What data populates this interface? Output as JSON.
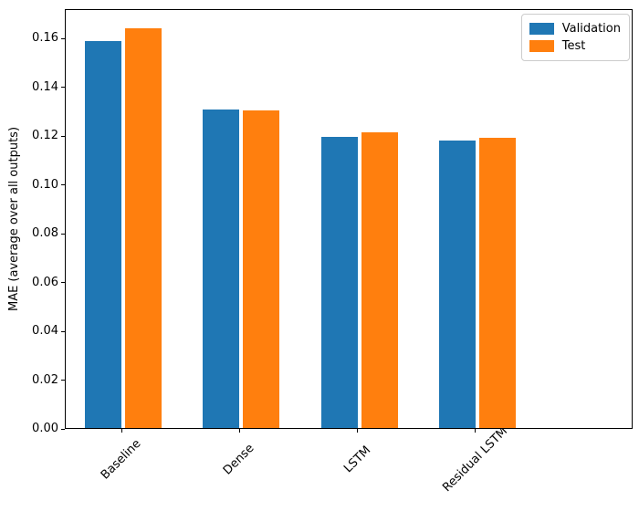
{
  "figure": {
    "background": "#ffffff"
  },
  "chart_data": {
    "type": "bar",
    "title": "",
    "categories": [
      "Baseline",
      "Dense",
      "LSTM",
      "Residual LSTM"
    ],
    "series": [
      {
        "name": "Validation",
        "color": "#1f77b4",
        "values": [
          0.159,
          0.1307,
          0.1198,
          0.1182
        ]
      },
      {
        "name": "Test",
        "color": "#ff7f0e",
        "values": [
          0.164,
          0.1306,
          0.1215,
          0.1192
        ]
      }
    ],
    "xlabel": "",
    "ylabel": "MAE (average over all outputs)",
    "ylim": [
      0,
      0.172
    ],
    "yticks": [
      {
        "label": "0.00",
        "value": 0.0
      },
      {
        "label": "0.02",
        "value": 0.02
      },
      {
        "label": "0.04",
        "value": 0.04
      },
      {
        "label": "0.06",
        "value": 0.06
      },
      {
        "label": "0.08",
        "value": 0.08
      },
      {
        "label": "0.10",
        "value": 0.1
      },
      {
        "label": "0.12",
        "value": 0.12
      },
      {
        "label": "0.14",
        "value": 0.14
      },
      {
        "label": "0.16",
        "value": 0.16
      }
    ],
    "legend": {
      "position": "upper right",
      "entries": [
        "Validation",
        "Test"
      ]
    },
    "grid": false
  }
}
